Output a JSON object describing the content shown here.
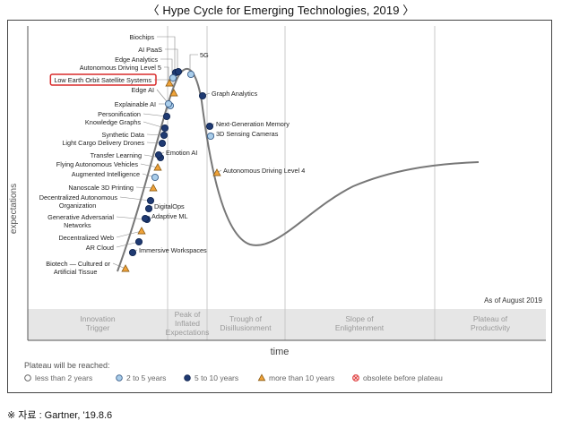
{
  "page": {
    "title": "〈 Hype Cycle for Emerging Technologies, 2019 〉",
    "source": "※ 자료 : Gartner, '19.8.6"
  },
  "chart_data": {
    "type": "line",
    "title": "Hype Cycle for Emerging Technologies, 2019",
    "ylabel": "expectations",
    "xlabel": "time",
    "as_of": "As of August 2019",
    "phases": [
      {
        "lines": [
          "Innovation",
          "Trigger"
        ]
      },
      {
        "lines": [
          "Peak of",
          "Inflated",
          "Expectations"
        ]
      },
      {
        "lines": [
          "Trough of",
          "Disillusionment"
        ]
      },
      {
        "lines": [
          "Slope of",
          "Enlightenment"
        ]
      },
      {
        "lines": [
          "Plateau of",
          "Productivity"
        ]
      }
    ],
    "legend_title": "Plateau will be reached:",
    "legend": [
      {
        "label": "less than 2 years",
        "marker": "open-circle"
      },
      {
        "label": "2 to 5 years",
        "marker": "light-circle"
      },
      {
        "label": "5 to 10 years",
        "marker": "dark-circle"
      },
      {
        "label": "more than 10 years",
        "marker": "triangle"
      },
      {
        "label": "obsolete before plateau",
        "marker": "x-circle"
      }
    ],
    "colors": {
      "curve": "#777777",
      "dark": "#1f3a72",
      "light": "#a9cdea",
      "triangle": "#f0a33a",
      "obsolete": "#e14a4a",
      "highlight": "#d92b2b",
      "band": "#e6e6e6"
    },
    "technologies": [
      {
        "name": "Biochips",
        "marker": "dark-circle",
        "phase": "Peak of Inflated Expectations"
      },
      {
        "name": "AI PaaS",
        "marker": "dark-circle",
        "phase": "Peak of Inflated Expectations"
      },
      {
        "name": "Edge Analytics",
        "marker": "light-circle",
        "phase": "Innovation Trigger"
      },
      {
        "name": "Autonomous Driving Level 5",
        "marker": "triangle",
        "phase": "Innovation Trigger"
      },
      {
        "name": "Low Earth Orbit Satellite Systems",
        "marker": "triangle",
        "phase": "Innovation Trigger",
        "highlighted": true
      },
      {
        "name": "5G",
        "marker": "light-circle",
        "phase": "Peak of Inflated Expectations"
      },
      {
        "name": "Edge AI",
        "marker": "light-circle",
        "phase": "Innovation Trigger"
      },
      {
        "name": "Explainable AI",
        "marker": "light-circle",
        "phase": "Innovation Trigger"
      },
      {
        "name": "Personification",
        "marker": "dark-circle",
        "phase": "Innovation Trigger"
      },
      {
        "name": "Knowledge Graphs",
        "marker": "dark-circle",
        "phase": "Innovation Trigger"
      },
      {
        "name": "Synthetic Data",
        "marker": "dark-circle",
        "phase": "Innovation Trigger"
      },
      {
        "name": "Light Cargo Delivery Drones",
        "marker": "dark-circle",
        "phase": "Innovation Trigger"
      },
      {
        "name": "Transfer Learning",
        "marker": "dark-circle",
        "phase": "Innovation Trigger"
      },
      {
        "name": "Flying Autonomous Vehicles",
        "marker": "triangle",
        "phase": "Innovation Trigger"
      },
      {
        "name": "Augmented Intelligence",
        "marker": "light-circle",
        "phase": "Innovation Trigger"
      },
      {
        "name": "Nanoscale 3D Printing",
        "marker": "triangle",
        "phase": "Innovation Trigger"
      },
      {
        "name": "Decentralized Autonomous Organization",
        "marker": "dark-circle",
        "phase": "Innovation Trigger"
      },
      {
        "name": "Generative Adversarial Networks",
        "marker": "dark-circle",
        "phase": "Innovation Trigger"
      },
      {
        "name": "Decentralized Web",
        "marker": "triangle",
        "phase": "Innovation Trigger"
      },
      {
        "name": "AR Cloud",
        "marker": "dark-circle",
        "phase": "Innovation Trigger"
      },
      {
        "name": "Biotech — Cultured or Artificial Tissue",
        "marker": "triangle",
        "phase": "Innovation Trigger"
      },
      {
        "name": "Immersive Workspaces",
        "marker": "dark-circle",
        "phase": "Innovation Trigger"
      },
      {
        "name": "Adaptive ML",
        "marker": "dark-circle",
        "phase": "Innovation Trigger"
      },
      {
        "name": "DigitalOps",
        "marker": "dark-circle",
        "phase": "Innovation Trigger"
      },
      {
        "name": "Emotion AI",
        "marker": "dark-circle",
        "phase": "Innovation Trigger"
      },
      {
        "name": "Graph Analytics",
        "marker": "dark-circle",
        "phase": "Peak of Inflated Expectations"
      },
      {
        "name": "Next-Generation Memory",
        "marker": "dark-circle",
        "phase": "Peak of Inflated Expectations"
      },
      {
        "name": "3D Sensing Cameras",
        "marker": "light-circle",
        "phase": "Peak of Inflated Expectations"
      },
      {
        "name": "Autonomous Driving Level 4",
        "marker": "triangle",
        "phase": "Peak of Inflated Expectations"
      }
    ]
  }
}
